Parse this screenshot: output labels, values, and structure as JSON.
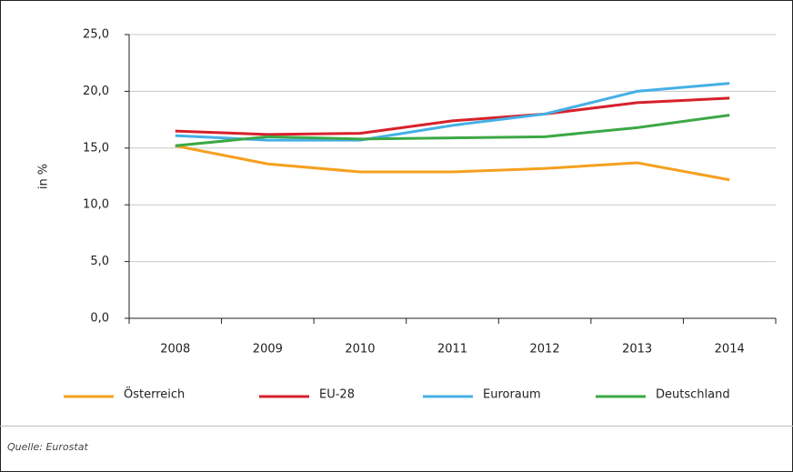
{
  "chart_data": {
    "type": "line",
    "ylabel": "in %",
    "source": "Quelle: Eurostat",
    "categories": [
      "2008",
      "2009",
      "2010",
      "2011",
      "2012",
      "2013",
      "2014"
    ],
    "series": [
      {
        "name": "Österreich",
        "color": "#f5a01e",
        "values": [
          15.2,
          13.6,
          12.9,
          12.9,
          13.2,
          13.7,
          12.2
        ]
      },
      {
        "name": "EU-28",
        "color": "#d7212b",
        "values": [
          16.5,
          16.2,
          16.3,
          17.4,
          18.0,
          19.0,
          19.4
        ]
      },
      {
        "name": "Euroraum",
        "color": "#45b0e6",
        "values": [
          16.1,
          15.7,
          15.7,
          17.0,
          18.0,
          20.0,
          20.7
        ]
      },
      {
        "name": "Deutschland",
        "color": "#3ca845",
        "values": [
          15.2,
          16.0,
          15.8,
          15.9,
          16.0,
          16.8,
          17.9
        ]
      }
    ],
    "ylim": [
      0,
      25
    ],
    "yticks": [
      {
        "value": 0,
        "label": "0,0"
      },
      {
        "value": 5,
        "label": "5,0"
      },
      {
        "value": 10,
        "label": "10,0"
      },
      {
        "value": 15,
        "label": "15,0"
      },
      {
        "value": 20,
        "label": "20,0"
      },
      {
        "value": 25,
        "label": "25,0"
      }
    ],
    "grid": true
  }
}
